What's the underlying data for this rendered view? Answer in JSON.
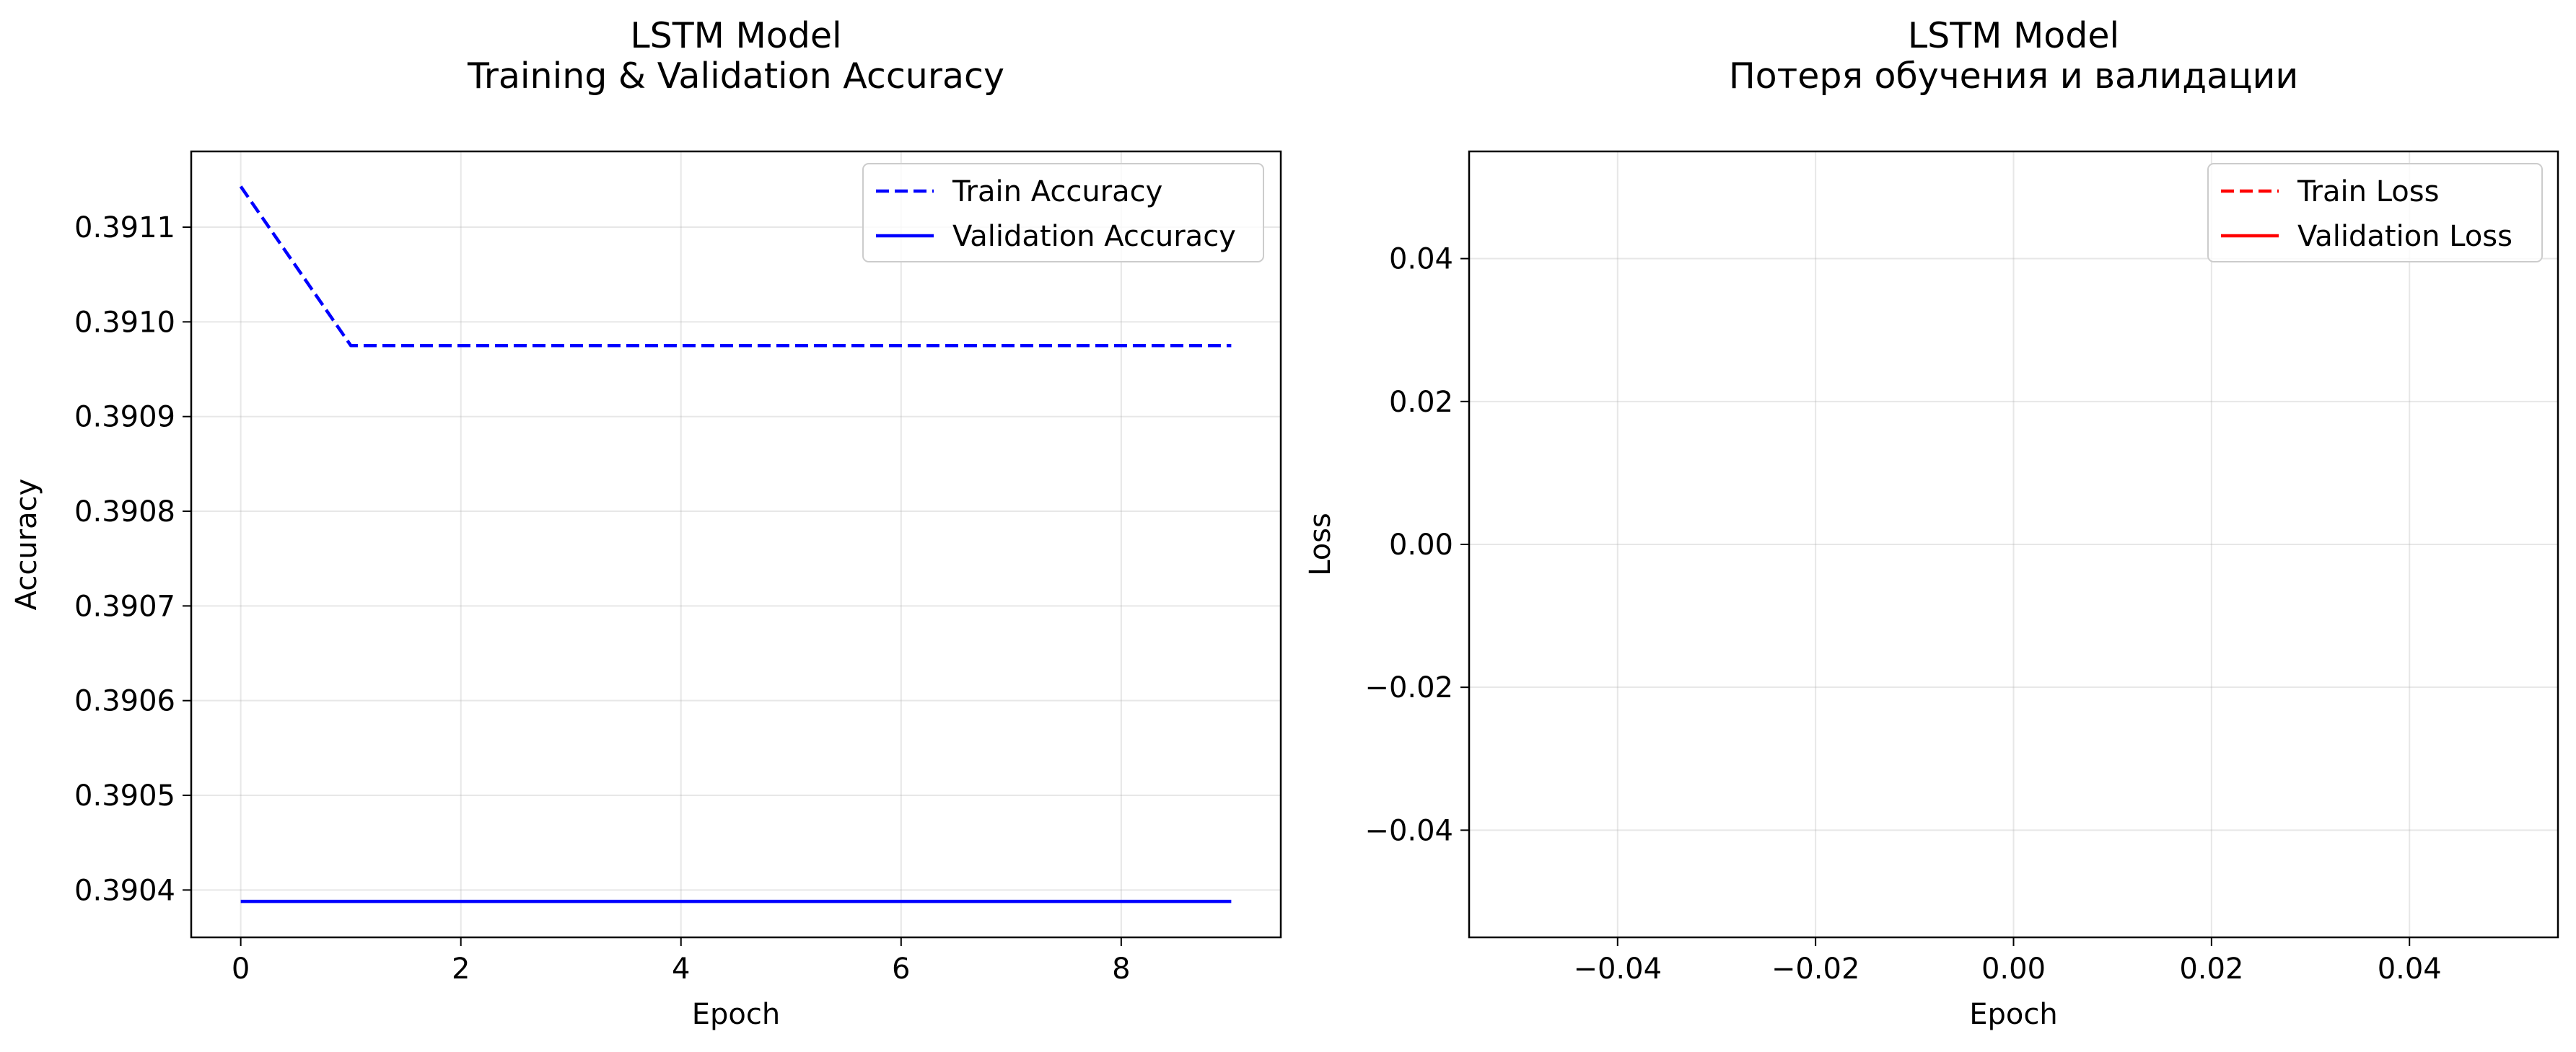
{
  "chart_data": [
    {
      "type": "line",
      "title": "LSTM Model\nTraining & Validation Accuracy",
      "xlabel": "Epoch",
      "ylabel": "Accuracy",
      "xlim": [
        -0.45,
        9.45
      ],
      "ylim": [
        0.39035,
        0.39118
      ],
      "xticks": [
        0,
        2,
        4,
        6,
        8
      ],
      "xtick_labels": [
        "0",
        "2",
        "4",
        "6",
        "8"
      ],
      "yticks": [
        0.3904,
        0.3905,
        0.3906,
        0.3907,
        0.3908,
        0.3909,
        0.391,
        0.3911
      ],
      "ytick_labels": [
        "0.3904",
        "0.3905",
        "0.3906",
        "0.3907",
        "0.3908",
        "0.3909",
        "0.3910",
        "0.3911"
      ],
      "grid": true,
      "legend_position": "upper right",
      "x": [
        0,
        1,
        2,
        3,
        4,
        5,
        6,
        7,
        8,
        9
      ],
      "series": [
        {
          "name": "Train Accuracy",
          "color": "#0000ff",
          "style": "dashed",
          "values": [
            0.391143,
            0.390975,
            0.390975,
            0.390975,
            0.390975,
            0.390975,
            0.390975,
            0.390975,
            0.390975,
            0.390975
          ]
        },
        {
          "name": "Validation Accuracy",
          "color": "#0000ff",
          "style": "solid",
          "values": [
            0.390388,
            0.390388,
            0.390388,
            0.390388,
            0.390388,
            0.390388,
            0.390388,
            0.390388,
            0.390388,
            0.390388
          ]
        }
      ]
    },
    {
      "type": "line",
      "title": "LSTM Model\nПотеря обучения и валидации",
      "xlabel": "Epoch",
      "ylabel": "Loss",
      "xlim": [
        -0.055,
        0.055
      ],
      "ylim": [
        -0.055,
        0.055
      ],
      "xticks": [
        -0.04,
        -0.02,
        0,
        0.02,
        0.04
      ],
      "xtick_labels": [
        "−0.04",
        "−0.02",
        "0.00",
        "0.02",
        "0.04"
      ],
      "yticks": [
        -0.04,
        -0.02,
        0,
        0.02,
        0.04
      ],
      "ytick_labels": [
        "−0.04",
        "−0.02",
        "0.00",
        "0.02",
        "0.04"
      ],
      "grid": true,
      "legend_position": "upper right",
      "x": [],
      "series": [
        {
          "name": "Train Loss",
          "color": "#ff0000",
          "style": "dashed",
          "values": []
        },
        {
          "name": "Validation Loss",
          "color": "#ff0000",
          "style": "solid",
          "values": []
        }
      ]
    }
  ]
}
